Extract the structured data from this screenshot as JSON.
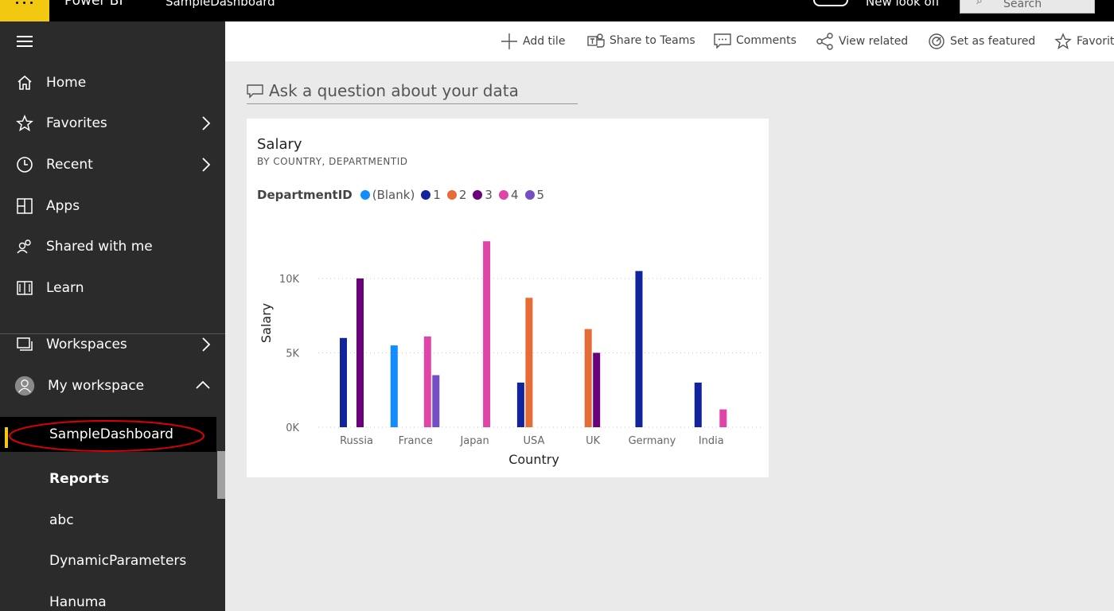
{
  "topbar": {
    "app_name": "Power BI",
    "report_name": "SampleDashboard",
    "new_look": "New look off",
    "search_placeholder": "Search"
  },
  "sidebar": {
    "nav": [
      {
        "label": "Home",
        "icon": "home-icon"
      },
      {
        "label": "Favorites",
        "icon": "star-icon"
      },
      {
        "label": "Recent",
        "icon": "clock-icon"
      },
      {
        "label": "Apps",
        "icon": "apps-icon"
      },
      {
        "label": "Shared with me",
        "icon": "shared-icon"
      },
      {
        "label": "Learn",
        "icon": "book-icon"
      }
    ],
    "workspaces": "Workspaces",
    "my_workspace": "My workspace",
    "sub_items": [
      "SampleDashboard",
      "Reports",
      "abc",
      "DynamicParameters",
      "Hanuma"
    ]
  },
  "actions": {
    "add_tile": "Add tile",
    "share_teams": "Share to Teams",
    "comments": "Comments",
    "view_related": "View related",
    "set_featured": "Set as featured",
    "favorite": "Favorite"
  },
  "qa": {
    "placeholder": "Ask a question about your data"
  },
  "tile": {
    "title": "Salary",
    "subtitle": "BY COUNTRY, DEPARTMENTID"
  },
  "colors": {
    "accent": "#f2c811",
    "blank": "#118dff",
    "d1": "#12239e",
    "d2": "#e66c37",
    "d3": "#6b007b",
    "d4": "#e044a7",
    "d5": "#744ec2"
  },
  "chart_data": {
    "type": "bar",
    "title": "Salary",
    "subtitle": "BY COUNTRY, DEPARTMENTID",
    "xlabel": "Country",
    "ylabel": "Salary",
    "legend_title": "DepartmentID",
    "categories": [
      "Russia",
      "France",
      "Japan",
      "USA",
      "UK",
      "Germany",
      "India"
    ],
    "ylim": [
      0,
      12500
    ],
    "yticks": [
      0,
      5000,
      10000
    ],
    "ytick_labels": [
      "0K",
      "5K",
      "10K"
    ],
    "series": [
      {
        "name": "(Blank)",
        "color": "#118dff",
        "values": [
          null,
          5500,
          null,
          null,
          null,
          null,
          null
        ]
      },
      {
        "name": "1",
        "color": "#12239e",
        "values": [
          6000,
          null,
          null,
          3000,
          null,
          10500,
          3000
        ]
      },
      {
        "name": "2",
        "color": "#e66c37",
        "values": [
          null,
          null,
          null,
          8700,
          6600,
          null,
          null
        ]
      },
      {
        "name": "3",
        "color": "#6b007b",
        "values": [
          10000,
          null,
          null,
          null,
          5000,
          null,
          null
        ]
      },
      {
        "name": "4",
        "color": "#e044a7",
        "values": [
          null,
          6100,
          12500,
          null,
          null,
          null,
          1200
        ]
      },
      {
        "name": "5",
        "color": "#744ec2",
        "values": [
          null,
          3500,
          null,
          null,
          null,
          null,
          null
        ]
      }
    ]
  }
}
